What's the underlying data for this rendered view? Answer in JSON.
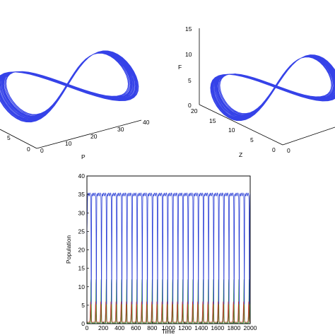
{
  "chart_data": [
    {
      "type": "line",
      "projection": "3d",
      "axes": {
        "P": {
          "label": "P",
          "ticks": [
            "0",
            "10",
            "20",
            "30",
            "40"
          ]
        },
        "Z": {
          "label": "",
          "ticks": [
            "0",
            "5"
          ]
        }
      },
      "series": [
        {
          "color": "#1f2ee6",
          "description_visible": "chaotic attractor trajectory"
        }
      ]
    },
    {
      "type": "line",
      "projection": "3d",
      "axes": {
        "F": {
          "label": "F",
          "ticks": [
            "0",
            "5",
            "10",
            "15"
          ]
        },
        "Z": {
          "label": "Z",
          "ticks": [
            "0",
            "5",
            "10",
            "15",
            "20"
          ]
        },
        "P": {
          "label": "",
          "ticks": [
            "0"
          ]
        }
      },
      "series": [
        {
          "color": "#1f2ee6"
        }
      ]
    },
    {
      "type": "line",
      "xlabel": "Time",
      "ylabel": "Population",
      "xlim": [
        0,
        2000
      ],
      "ylim": [
        0,
        40
      ],
      "xticks": [
        "0",
        "200",
        "400",
        "600",
        "800",
        "1000",
        "1200",
        "1400",
        "1600",
        "1800",
        "2000"
      ],
      "yticks": [
        "0",
        "5",
        "10",
        "15",
        "20",
        "25",
        "30",
        "35",
        "40"
      ],
      "n_cycles": 32,
      "series": [
        {
          "color": "#2b3fd6",
          "peak": 35,
          "trough": 4,
          "min_after_start": 0
        },
        {
          "color": "#1e8c1e",
          "peak": 12,
          "trough": 0.2
        },
        {
          "color": "#c0392b",
          "peak": 6,
          "trough": 0.4
        }
      ]
    }
  ]
}
